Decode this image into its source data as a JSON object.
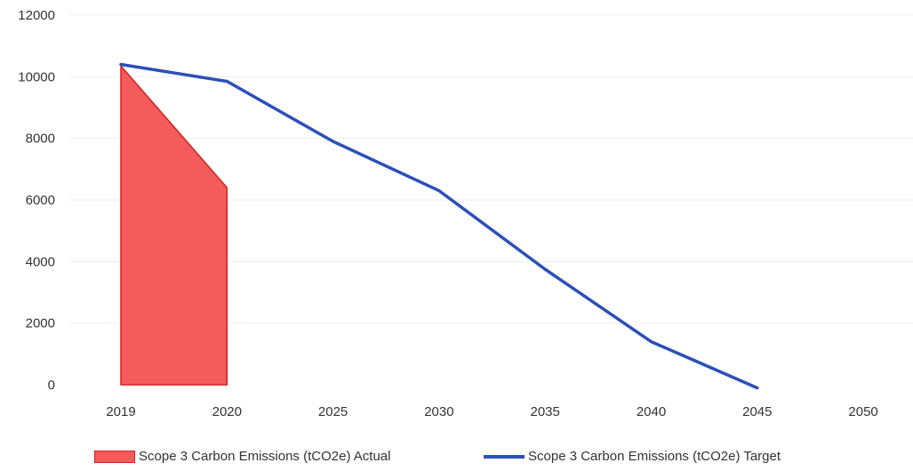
{
  "chart_data": {
    "type": "area",
    "categories": [
      "2019",
      "2020",
      "2025",
      "2030",
      "2035",
      "2040",
      "2045",
      "2050"
    ],
    "series": [
      {
        "name": "Scope 3 Carbon Emissions (tCO2e) Actual",
        "type": "area",
        "values": [
          10350,
          6400,
          null,
          null,
          null,
          null,
          null,
          null
        ],
        "color": "#f45b5b",
        "stroke": "#d42020"
      },
      {
        "name": "Scope 3 Carbon Emissions (tCO2e) Target",
        "type": "line",
        "values": [
          10400,
          9850,
          7900,
          6300,
          3750,
          1400,
          -100,
          null
        ],
        "color": "#2c4fb8"
      }
    ],
    "y_ticks": [
      "0",
      "2000",
      "4000",
      "6000",
      "8000",
      "10000",
      "12000"
    ],
    "ylim": [
      0,
      12000
    ],
    "grid": true,
    "legend": "bottom"
  }
}
